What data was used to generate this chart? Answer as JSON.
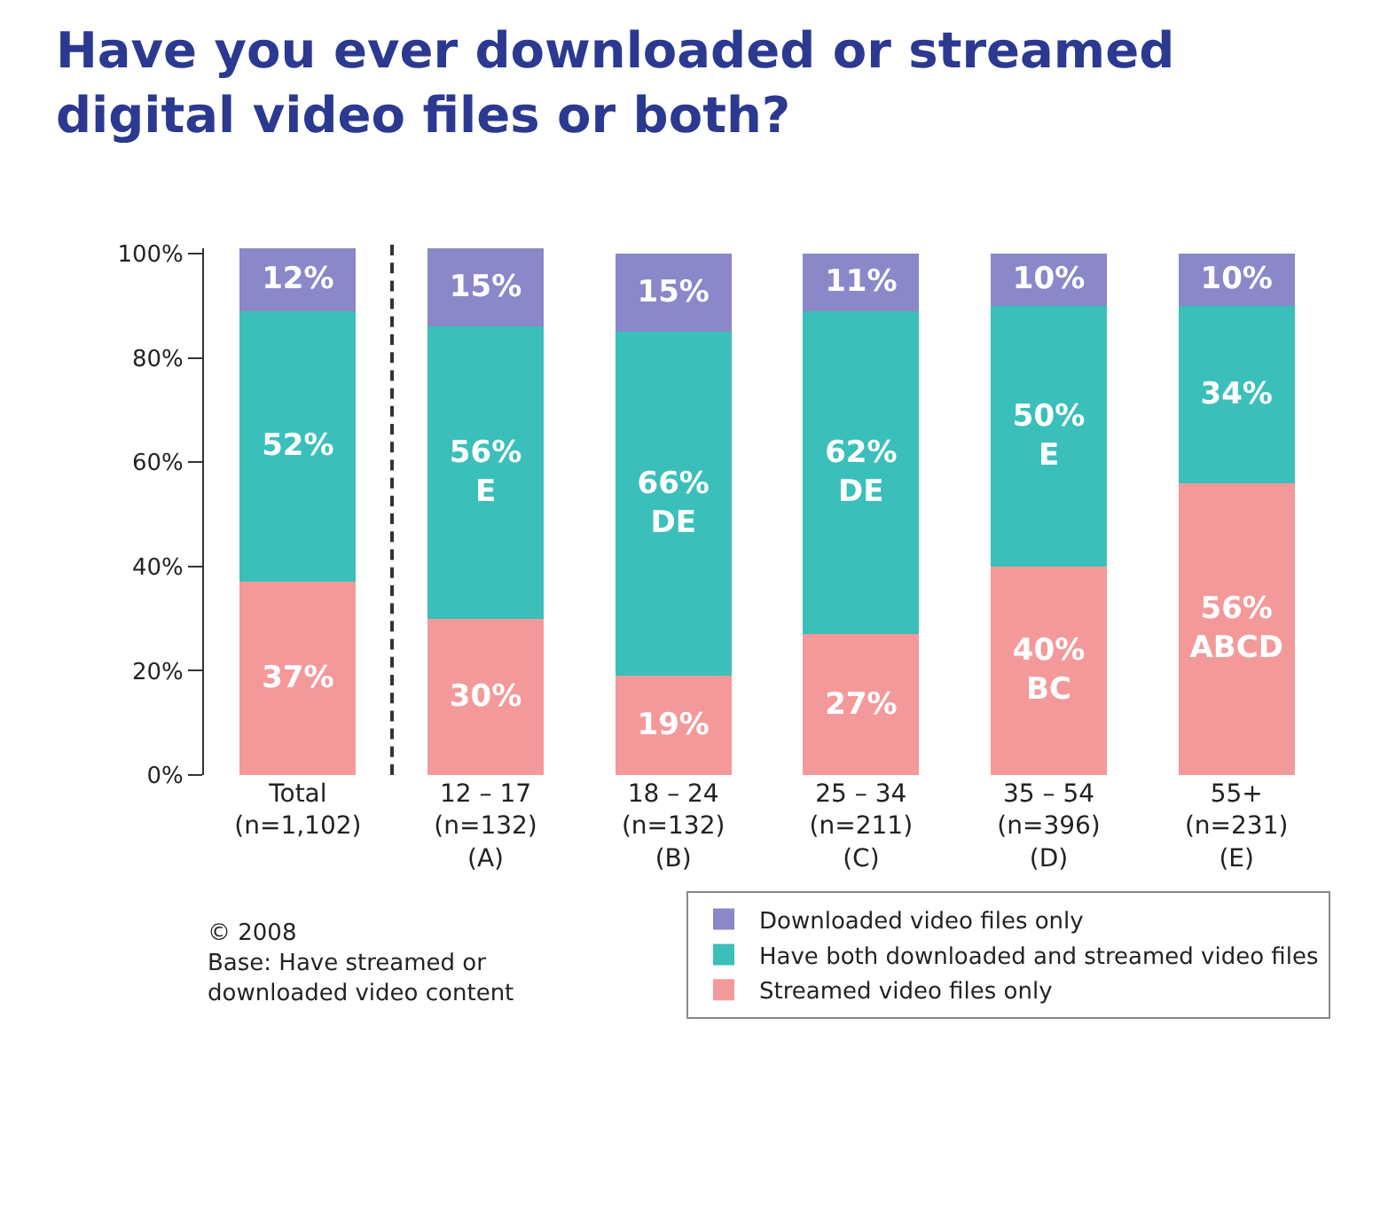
{
  "chart_data": {
    "type": "bar",
    "stacked": true,
    "title": "Have you ever downloaded or streamed\ndigital video files or both?",
    "categories": [
      "Total\n(n=1,102)",
      "12 – 17\n(n=132)\n(A)",
      "18 – 24\n(n=132)\n(B)",
      "25 – 34\n(n=211)\n(C)",
      "35 – 54\n(n=396)\n(D)",
      "55+\n(n=231)\n(E)"
    ],
    "series": [
      {
        "name": "Streamed video files only",
        "color": "#f4999a",
        "values": [
          37,
          30,
          19,
          27,
          40,
          56
        ],
        "value_labels": [
          "37%",
          "30%",
          "19%",
          "27%",
          "40%\nBC",
          "56%\nABCD"
        ]
      },
      {
        "name": "Have both downloaded and streamed video files",
        "color": "#3bbfbb",
        "values": [
          52,
          56,
          66,
          62,
          50,
          34
        ],
        "value_labels": [
          "52%",
          "56%\nE",
          "66%\nDE",
          "62%\nDE",
          "50%\nE",
          "34%"
        ]
      },
      {
        "name": "Downloaded video files only",
        "color": "#8a88c8",
        "values": [
          12,
          15,
          15,
          11,
          10,
          10
        ],
        "value_labels": [
          "12%",
          "15%",
          "15%",
          "11%",
          "10%",
          "10%"
        ]
      }
    ],
    "ylim": [
      0,
      101
    ],
    "yticks": [
      {
        "value": 0,
        "label": "0%"
      },
      {
        "value": 20,
        "label": "20%"
      },
      {
        "value": 40,
        "label": "40%"
      },
      {
        "value": 60,
        "label": "60%"
      },
      {
        "value": 80,
        "label": "80%"
      },
      {
        "value": 100,
        "label": "100%"
      }
    ],
    "grid": false,
    "legend": "bottom right",
    "annotations": [
      "© 2008\nBase: Have streamed or\ndownloaded video content"
    ]
  }
}
